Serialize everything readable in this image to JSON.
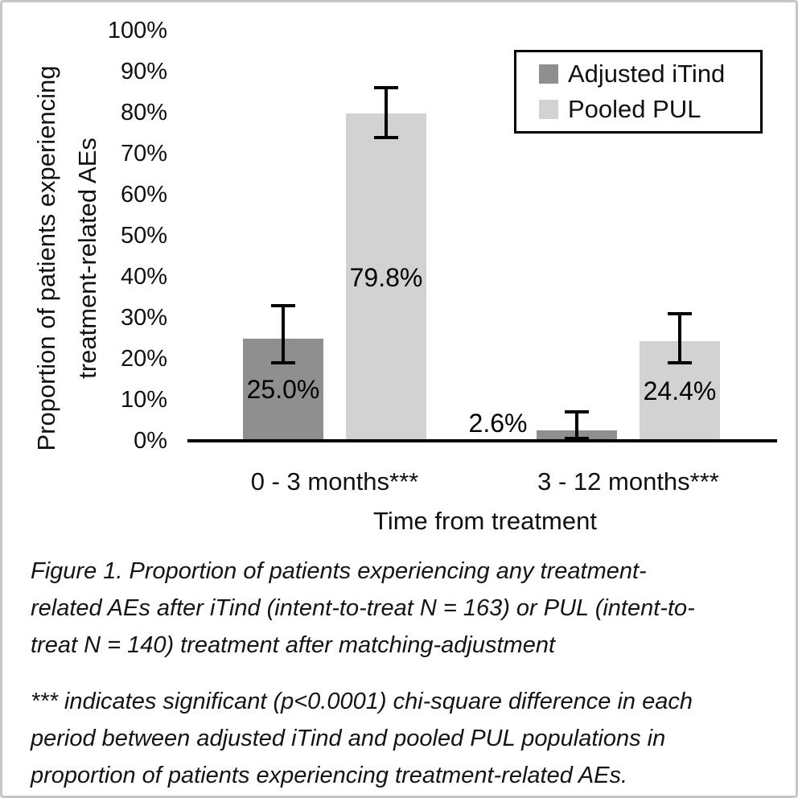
{
  "figure": {
    "y_axis_title_line1": "Proportion of patients experiencing",
    "y_axis_title_line2": "treatment-related AEs",
    "x_axis_title": "Time from treatment",
    "legend": {
      "items": [
        {
          "label": "Adjusted iTind",
          "color": "#8f8f8f"
        },
        {
          "label": "Pooled PUL",
          "color": "#d2d2d2"
        }
      ]
    },
    "caption_lines": [
      "Figure 1. Proportion of patients experiencing any treatment-",
      "related AEs after iTind (intent-to-treat N = 163) or PUL (intent-to-",
      "treat N = 140) treatment after matching-adjustment"
    ],
    "footnote_lines": [
      "*** indicates significant (p<0.0001) chi-square difference in each",
      "period between adjusted iTind and pooled PUL populations in",
      "proportion of patients experiencing treatment-related AEs."
    ]
  },
  "chart_data": {
    "type": "bar",
    "title": "",
    "xlabel": "Time from treatment",
    "ylabel": "Proportion of patients experiencing treatment-related AEs",
    "categories": [
      "0 - 3 months***",
      "3 - 12 months***"
    ],
    "series": [
      {
        "name": "Adjusted iTind",
        "color": "#8f8f8f",
        "values": [
          25.0,
          2.6
        ],
        "labels": [
          "25.0%",
          "2.6%"
        ],
        "error_low": [
          19,
          0.5
        ],
        "error_high": [
          33,
          7
        ]
      },
      {
        "name": "Pooled PUL",
        "color": "#d2d2d2",
        "values": [
          79.8,
          24.4
        ],
        "labels": [
          "79.8%",
          "24.4%"
        ],
        "error_low": [
          74,
          19
        ],
        "error_high": [
          86,
          31
        ]
      }
    ],
    "ylim": [
      0,
      100
    ],
    "ytick_step": 10,
    "ytick_format": "percent",
    "legend_position": "top-right",
    "grid": false
  }
}
